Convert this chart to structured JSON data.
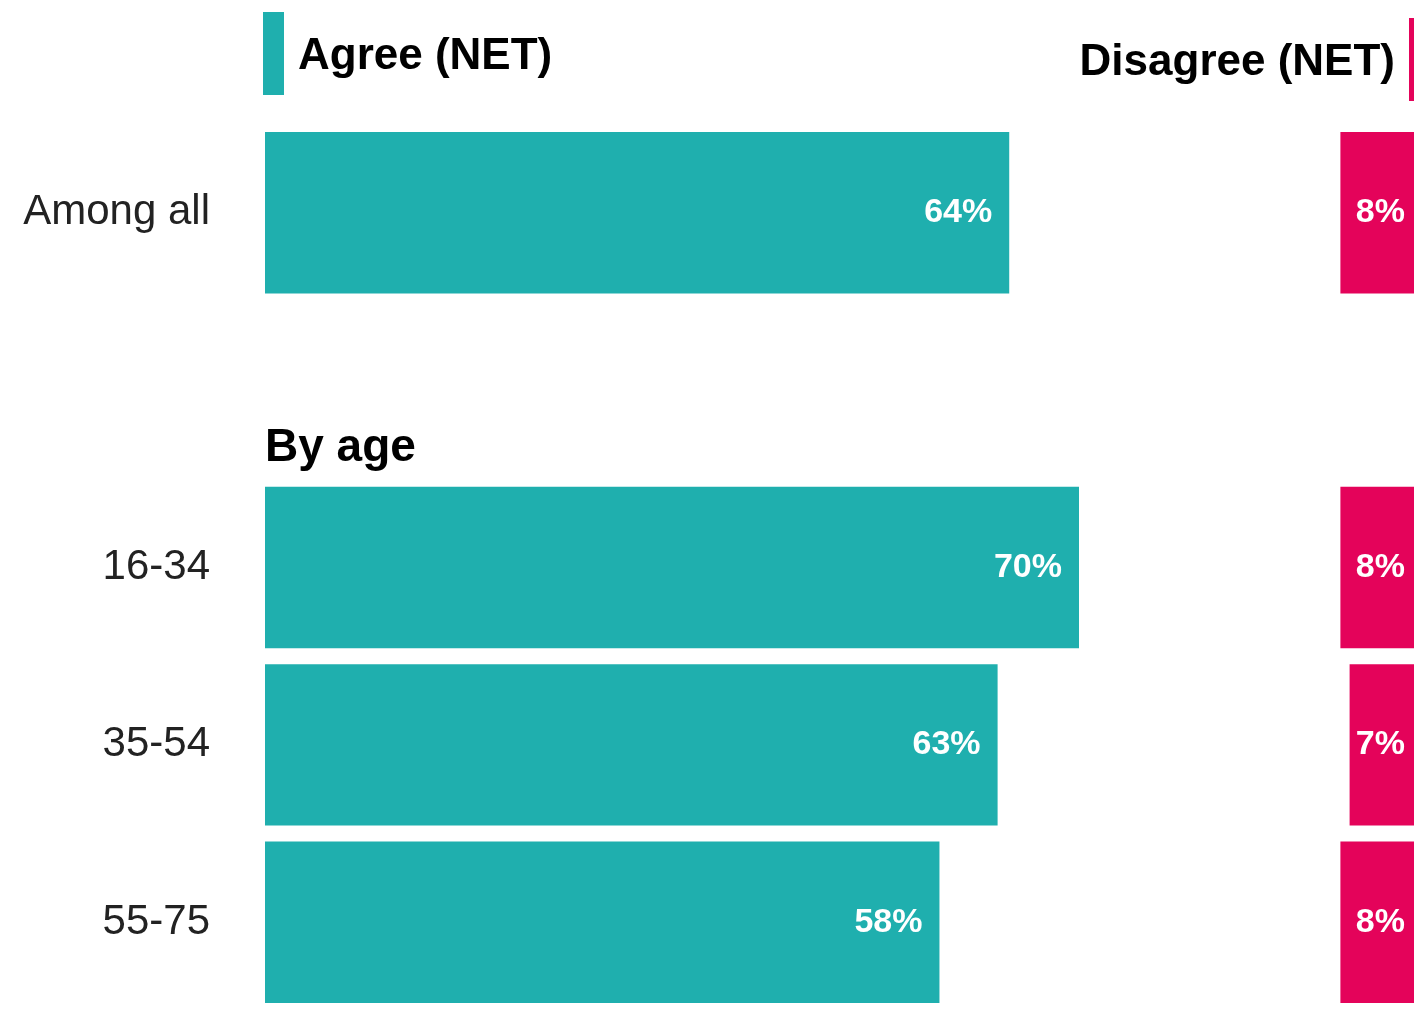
{
  "chart_data": [
    {
      "type": "bar",
      "orientation": "horizontal",
      "categories": [
        "Among all",
        null,
        "16-34",
        "35-54",
        "55-75"
      ],
      "tick_labels": "y",
      "legend": "top",
      "annotations": [
        "By age"
      ],
      "series": [
        {
          "name": "Agree (NET)",
          "color": "#1fafae",
          "values": [
            64,
            null,
            70,
            63,
            58
          ],
          "value_labels": [
            "64%",
            null,
            "70%",
            "63%",
            "58%"
          ]
        }
      ]
    },
    {
      "type": "bar",
      "orientation": "horizontal",
      "categories": [
        null,
        null,
        null,
        null,
        null
      ],
      "tick_labels": false,
      "legend": "top",
      "series": [
        {
          "name": "Disagree (NET)",
          "color": "#e4035a",
          "values": [
            8,
            null,
            8,
            7,
            8
          ],
          "value_labels": [
            "8%",
            null,
            "8%",
            "7%",
            "8%"
          ]
        }
      ]
    }
  ]
}
